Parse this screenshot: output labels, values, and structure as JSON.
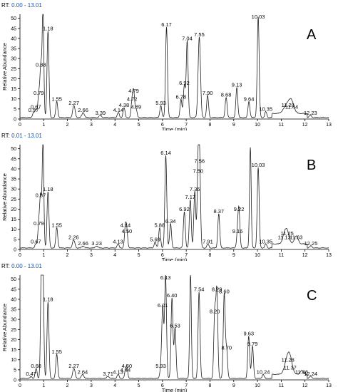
{
  "chart_data": [
    {
      "type": "line",
      "header_label": "RT:",
      "header_range": "0.00 - 13.01",
      "panel_label": "A",
      "xlabel": "Time (min)",
      "ylabel": "Relative Abundance",
      "xlim": [
        0,
        13
      ],
      "ylim": [
        0,
        52
      ],
      "x_ticks": [
        "0",
        "1",
        "2",
        "3",
        "4",
        "5",
        "6",
        "7",
        "8",
        "9",
        "10",
        "11",
        "12",
        "13"
      ],
      "y_ticks": [
        "0",
        "5",
        "10",
        "15",
        "20",
        "25",
        "30",
        "35",
        "40",
        "45",
        "50"
      ],
      "peaks": [
        {
          "label": "0.57",
          "rt": 0.57,
          "h": 2.5,
          "w": 0.04
        },
        {
          "label": "0.67",
          "rt": 0.67,
          "h": 4,
          "w": 0.04
        },
        {
          "label": "0.79",
          "rt": 0.79,
          "h": 11,
          "w": 0.04
        },
        {
          "label": "0.88",
          "rt": 0.88,
          "h": 25,
          "w": 0.04
        },
        {
          "label": "",
          "rt": 0.97,
          "h": 52,
          "w": 0.035
        },
        {
          "label": "1.18",
          "rt": 1.18,
          "h": 43,
          "w": 0.04
        },
        {
          "label": "1.55",
          "rt": 1.55,
          "h": 8,
          "w": 0.04
        },
        {
          "label": "2.27",
          "rt": 2.27,
          "h": 6,
          "w": 0.05
        },
        {
          "label": "2.66",
          "rt": 2.66,
          "h": 2.5,
          "w": 0.05
        },
        {
          "label": "3.39",
          "rt": 3.39,
          "h": 1,
          "w": 0.05
        },
        {
          "label": "4.14",
          "rt": 4.14,
          "h": 2.5,
          "w": 0.04
        },
        {
          "label": "4.38",
          "rt": 4.38,
          "h": 5,
          "w": 0.04
        },
        {
          "label": "4.72",
          "rt": 4.72,
          "h": 8,
          "w": 0.04
        },
        {
          "label": "4.79",
          "rt": 4.79,
          "h": 12,
          "w": 0.04
        },
        {
          "label": "4.89",
          "rt": 4.89,
          "h": 4,
          "w": 0.04
        },
        {
          "label": "5.93",
          "rt": 5.93,
          "h": 6,
          "w": 0.04
        },
        {
          "label": "6.17",
          "rt": 6.17,
          "h": 45,
          "w": 0.04
        },
        {
          "label": "6.78",
          "rt": 6.78,
          "h": 9,
          "w": 0.04
        },
        {
          "label": "6.92",
          "rt": 6.92,
          "h": 16,
          "w": 0.04
        },
        {
          "label": "7.04",
          "rt": 7.04,
          "h": 38,
          "w": 0.04
        },
        {
          "label": "7.55",
          "rt": 7.55,
          "h": 40,
          "w": 0.05
        },
        {
          "label": "7.90",
          "rt": 7.9,
          "h": 11,
          "w": 0.04
        },
        {
          "label": "8.68",
          "rt": 8.68,
          "h": 10,
          "w": 0.04
        },
        {
          "label": "9.13",
          "rt": 9.13,
          "h": 15,
          "w": 0.04
        },
        {
          "label": "9.64",
          "rt": 9.64,
          "h": 8,
          "w": 0.04
        },
        {
          "label": "10.03",
          "rt": 10.03,
          "h": 50,
          "w": 0.04
        },
        {
          "label": "10.35",
          "rt": 10.35,
          "h": 3,
          "w": 0.04
        },
        {
          "label": "11.28",
          "rt": 11.28,
          "h": 5,
          "w": 0.15
        },
        {
          "label": "11.44",
          "rt": 11.44,
          "h": 4,
          "w": 0.1
        },
        {
          "label": "12.23",
          "rt": 12.23,
          "h": 1,
          "w": 0.05
        }
      ]
    },
    {
      "type": "line",
      "header_label": "RT:",
      "header_range": "0.01 - 13.01",
      "panel_label": "B",
      "xlabel": "Time (min)",
      "ylabel": "Relative Abundance",
      "xlim": [
        0,
        13
      ],
      "ylim": [
        0,
        52
      ],
      "x_ticks": [
        "0",
        "1",
        "2",
        "3",
        "4",
        "5",
        "6",
        "7",
        "8",
        "9",
        "10",
        "11",
        "12",
        "13"
      ],
      "y_ticks": [
        "0",
        "5",
        "10",
        "15",
        "20",
        "25",
        "30",
        "35",
        "40",
        "45",
        "50"
      ],
      "peaks": [
        {
          "label": "0.67",
          "rt": 0.67,
          "h": 2,
          "w": 0.04
        },
        {
          "label": "0.79",
          "rt": 0.79,
          "h": 11,
          "w": 0.04
        },
        {
          "label": "0.87",
          "rt": 0.87,
          "h": 25,
          "w": 0.04
        },
        {
          "label": "",
          "rt": 0.97,
          "h": 52,
          "w": 0.035
        },
        {
          "label": "1.18",
          "rt": 1.18,
          "h": 28,
          "w": 0.04
        },
        {
          "label": "1.55",
          "rt": 1.55,
          "h": 10,
          "w": 0.04
        },
        {
          "label": "2.26",
          "rt": 2.26,
          "h": 4,
          "w": 0.05
        },
        {
          "label": "2.66",
          "rt": 2.66,
          "h": 1,
          "w": 0.05
        },
        {
          "label": "3.23",
          "rt": 3.23,
          "h": 1,
          "w": 0.05
        },
        {
          "label": "4.13",
          "rt": 4.13,
          "h": 2,
          "w": 0.04
        },
        {
          "label": "4.44",
          "rt": 4.44,
          "h": 10,
          "w": 0.04
        },
        {
          "label": "4.50",
          "rt": 4.5,
          "h": 7,
          "w": 0.04
        },
        {
          "label": "5.69",
          "rt": 5.69,
          "h": 3,
          "w": 0.04
        },
        {
          "label": "5.88",
          "rt": 5.88,
          "h": 10,
          "w": 0.04
        },
        {
          "label": "6.14",
          "rt": 6.14,
          "h": 46,
          "w": 0.04
        },
        {
          "label": "6.34",
          "rt": 6.34,
          "h": 12,
          "w": 0.04
        },
        {
          "label": "6.92",
          "rt": 6.92,
          "h": 18,
          "w": 0.04
        },
        {
          "label": "7.17",
          "rt": 7.17,
          "h": 24,
          "w": 0.04
        },
        {
          "label": "7.36",
          "rt": 7.36,
          "h": 28,
          "w": 0.04
        },
        {
          "label": "7.50",
          "rt": 7.5,
          "h": 37,
          "w": 0.04
        },
        {
          "label": "7.56",
          "rt": 7.56,
          "h": 42,
          "w": 0.04
        },
        {
          "label": "7.91",
          "rt": 7.91,
          "h": 2,
          "w": 0.04
        },
        {
          "label": "8.37",
          "rt": 8.37,
          "h": 17,
          "w": 0.04
        },
        {
          "label": "9.16",
          "rt": 9.16,
          "h": 7,
          "w": 0.04
        },
        {
          "label": "9.22",
          "rt": 9.22,
          "h": 18,
          "w": 0.04
        },
        {
          "label": "",
          "rt": 9.7,
          "h": 50,
          "w": 0.035
        },
        {
          "label": "10.03",
          "rt": 10.03,
          "h": 40,
          "w": 0.04
        },
        {
          "label": "10.35",
          "rt": 10.35,
          "h": 2,
          "w": 0.04
        },
        {
          "label": "11.13",
          "rt": 11.13,
          "h": 4,
          "w": 0.08
        },
        {
          "label": "11.25",
          "rt": 11.25,
          "h": 6,
          "w": 0.08
        },
        {
          "label": "11.63",
          "rt": 11.63,
          "h": 4,
          "w": 0.08
        },
        {
          "label": "12.25",
          "rt": 12.25,
          "h": 1,
          "w": 0.05
        }
      ]
    },
    {
      "type": "line",
      "header_label": "RT:",
      "header_range": "0.00 - 13.01",
      "panel_label": "C",
      "xlabel": "Time (min)",
      "ylabel": "Relative Abundance",
      "xlim": [
        0,
        13
      ],
      "ylim": [
        0,
        52
      ],
      "x_ticks": [
        "0",
        "1",
        "2",
        "3",
        "4",
        "5",
        "6",
        "7",
        "8",
        "9",
        "10",
        "11",
        "12",
        "13"
      ],
      "y_ticks": [
        "0",
        "5",
        "10",
        "15",
        "20",
        "25",
        "30",
        "35",
        "40",
        "45",
        "50"
      ],
      "peaks": [
        {
          "label": "0.47",
          "rt": 0.47,
          "h": 1,
          "w": 0.04
        },
        {
          "label": "0.68",
          "rt": 0.68,
          "h": 5,
          "w": 0.04
        },
        {
          "label": "",
          "rt": 0.9,
          "h": 52,
          "w": 0.035
        },
        {
          "label": "",
          "rt": 0.97,
          "h": 52,
          "w": 0.035
        },
        {
          "label": "1.18",
          "rt": 1.18,
          "h": 38,
          "w": 0.04
        },
        {
          "label": "1.55",
          "rt": 1.55,
          "h": 12,
          "w": 0.04
        },
        {
          "label": "2.27",
          "rt": 2.27,
          "h": 5,
          "w": 0.05
        },
        {
          "label": "2.64",
          "rt": 2.64,
          "h": 2,
          "w": 0.05
        },
        {
          "label": "3.71",
          "rt": 3.71,
          "h": 1,
          "w": 0.05
        },
        {
          "label": "4.13",
          "rt": 4.13,
          "h": 2,
          "w": 0.04
        },
        {
          "label": "4.44",
          "rt": 4.44,
          "h": 3,
          "w": 0.04
        },
        {
          "label": "4.50",
          "rt": 4.5,
          "h": 5,
          "w": 0.04
        },
        {
          "label": "5.93",
          "rt": 5.93,
          "h": 5,
          "w": 0.04
        },
        {
          "label": "6.01",
          "rt": 6.01,
          "h": 35,
          "w": 0.04
        },
        {
          "label": "6.13",
          "rt": 6.13,
          "h": 51,
          "w": 0.04
        },
        {
          "label": "6.40",
          "rt": 6.4,
          "h": 40,
          "w": 0.04
        },
        {
          "label": "6.53",
          "rt": 6.53,
          "h": 25,
          "w": 0.04
        },
        {
          "label": "",
          "rt": 7.18,
          "h": 52,
          "w": 0.035
        },
        {
          "label": "7.54",
          "rt": 7.54,
          "h": 43,
          "w": 0.04
        },
        {
          "label": "8.20",
          "rt": 8.2,
          "h": 32,
          "w": 0.04
        },
        {
          "label": "8.29",
          "rt": 8.29,
          "h": 43,
          "w": 0.04
        },
        {
          "label": "8.60",
          "rt": 8.6,
          "h": 42,
          "w": 0.04
        },
        {
          "label": "8.70",
          "rt": 8.7,
          "h": 14,
          "w": 0.04
        },
        {
          "label": "9.63",
          "rt": 9.63,
          "h": 21,
          "w": 0.04
        },
        {
          "label": "9.79",
          "rt": 9.79,
          "h": 16,
          "w": 0.04
        },
        {
          "label": "10.24",
          "rt": 10.24,
          "h": 2,
          "w": 0.04
        },
        {
          "label": "11.28",
          "rt": 11.28,
          "h": 8,
          "w": 0.12
        },
        {
          "label": "11.37",
          "rt": 11.37,
          "h": 4,
          "w": 0.1
        },
        {
          "label": "11.86",
          "rt": 11.86,
          "h": 2,
          "w": 0.06
        },
        {
          "label": "12.24",
          "rt": 12.24,
          "h": 1,
          "w": 0.05
        }
      ]
    }
  ]
}
